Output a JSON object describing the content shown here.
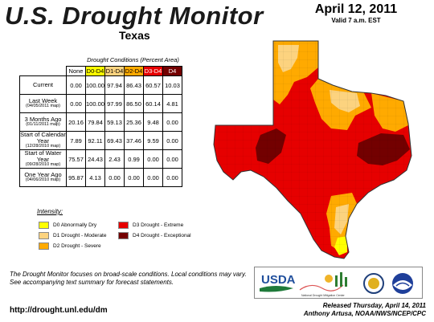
{
  "header": {
    "title": "U.S. Drought Monitor",
    "state": "Texas",
    "date": "April 12, 2011",
    "valid": "Valid 7 a.m. EST"
  },
  "table": {
    "caption": "Drought Conditions (Percent Area)",
    "columns": [
      "None",
      "D0-D4",
      "D1-D4",
      "D2-D4",
      "D3-D4",
      "D4"
    ],
    "column_colors": [
      "#ffffff",
      "#ffff00",
      "#fcd37f",
      "#ffaa00",
      "#e60000",
      "#730000"
    ],
    "rows": [
      {
        "label": "Current",
        "sub": "",
        "values": [
          "0.00",
          "100.00",
          "97.94",
          "86.43",
          "60.57",
          "10.03"
        ]
      },
      {
        "label": "Last Week",
        "sub": "(04/05/2011 map)",
        "values": [
          "0.00",
          "100.00",
          "97.99",
          "86.50",
          "60.14",
          "4.81"
        ]
      },
      {
        "label": "3 Months Ago",
        "sub": "(01/11/2011 map)",
        "values": [
          "20.16",
          "79.84",
          "59.13",
          "25.36",
          "9.48",
          "0.00"
        ]
      },
      {
        "label": "Start of Calendar Year",
        "sub": "(12/28/2010 map)",
        "values": [
          "7.89",
          "92.11",
          "69.43",
          "37.46",
          "9.59",
          "0.00"
        ]
      },
      {
        "label": "Start of Water Year",
        "sub": "(09/28/2010 map)",
        "values": [
          "75.57",
          "24.43",
          "2.43",
          "0.99",
          "0.00",
          "0.00"
        ]
      },
      {
        "label": "One Year Ago",
        "sub": "(04/06/2010 map)",
        "values": [
          "95.87",
          "4.13",
          "0.00",
          "0.00",
          "0.00",
          "0.00"
        ]
      }
    ]
  },
  "legend": {
    "title": "Intensity:",
    "items": [
      {
        "label": "D0 Abnormally Dry",
        "color": "#ffff00"
      },
      {
        "label": "D1 Drought - Moderate",
        "color": "#fcd37f"
      },
      {
        "label": "D2 Drought - Severe",
        "color": "#ffaa00"
      },
      {
        "label": "D3 Drought - Extreme",
        "color": "#e60000"
      },
      {
        "label": "D4 Drought - Exceptional",
        "color": "#730000"
      }
    ]
  },
  "footer": {
    "note": "The Drought Monitor focuses on broad-scale conditions. Local conditions may vary. See accompanying text summary for forecast statements.",
    "url": "http://drought.unl.edu/dm",
    "released": "Released Thursday, April 14, 2011",
    "author": "Anthony Artusa, NOAA/NWS/NCEP/CPC"
  },
  "logos": {
    "usda": "USDA",
    "ndmc": "National Drought Mitigation Center"
  },
  "map": {
    "state": "Texas",
    "colors": {
      "border": "#444444",
      "county": "#b0b0b0"
    }
  }
}
